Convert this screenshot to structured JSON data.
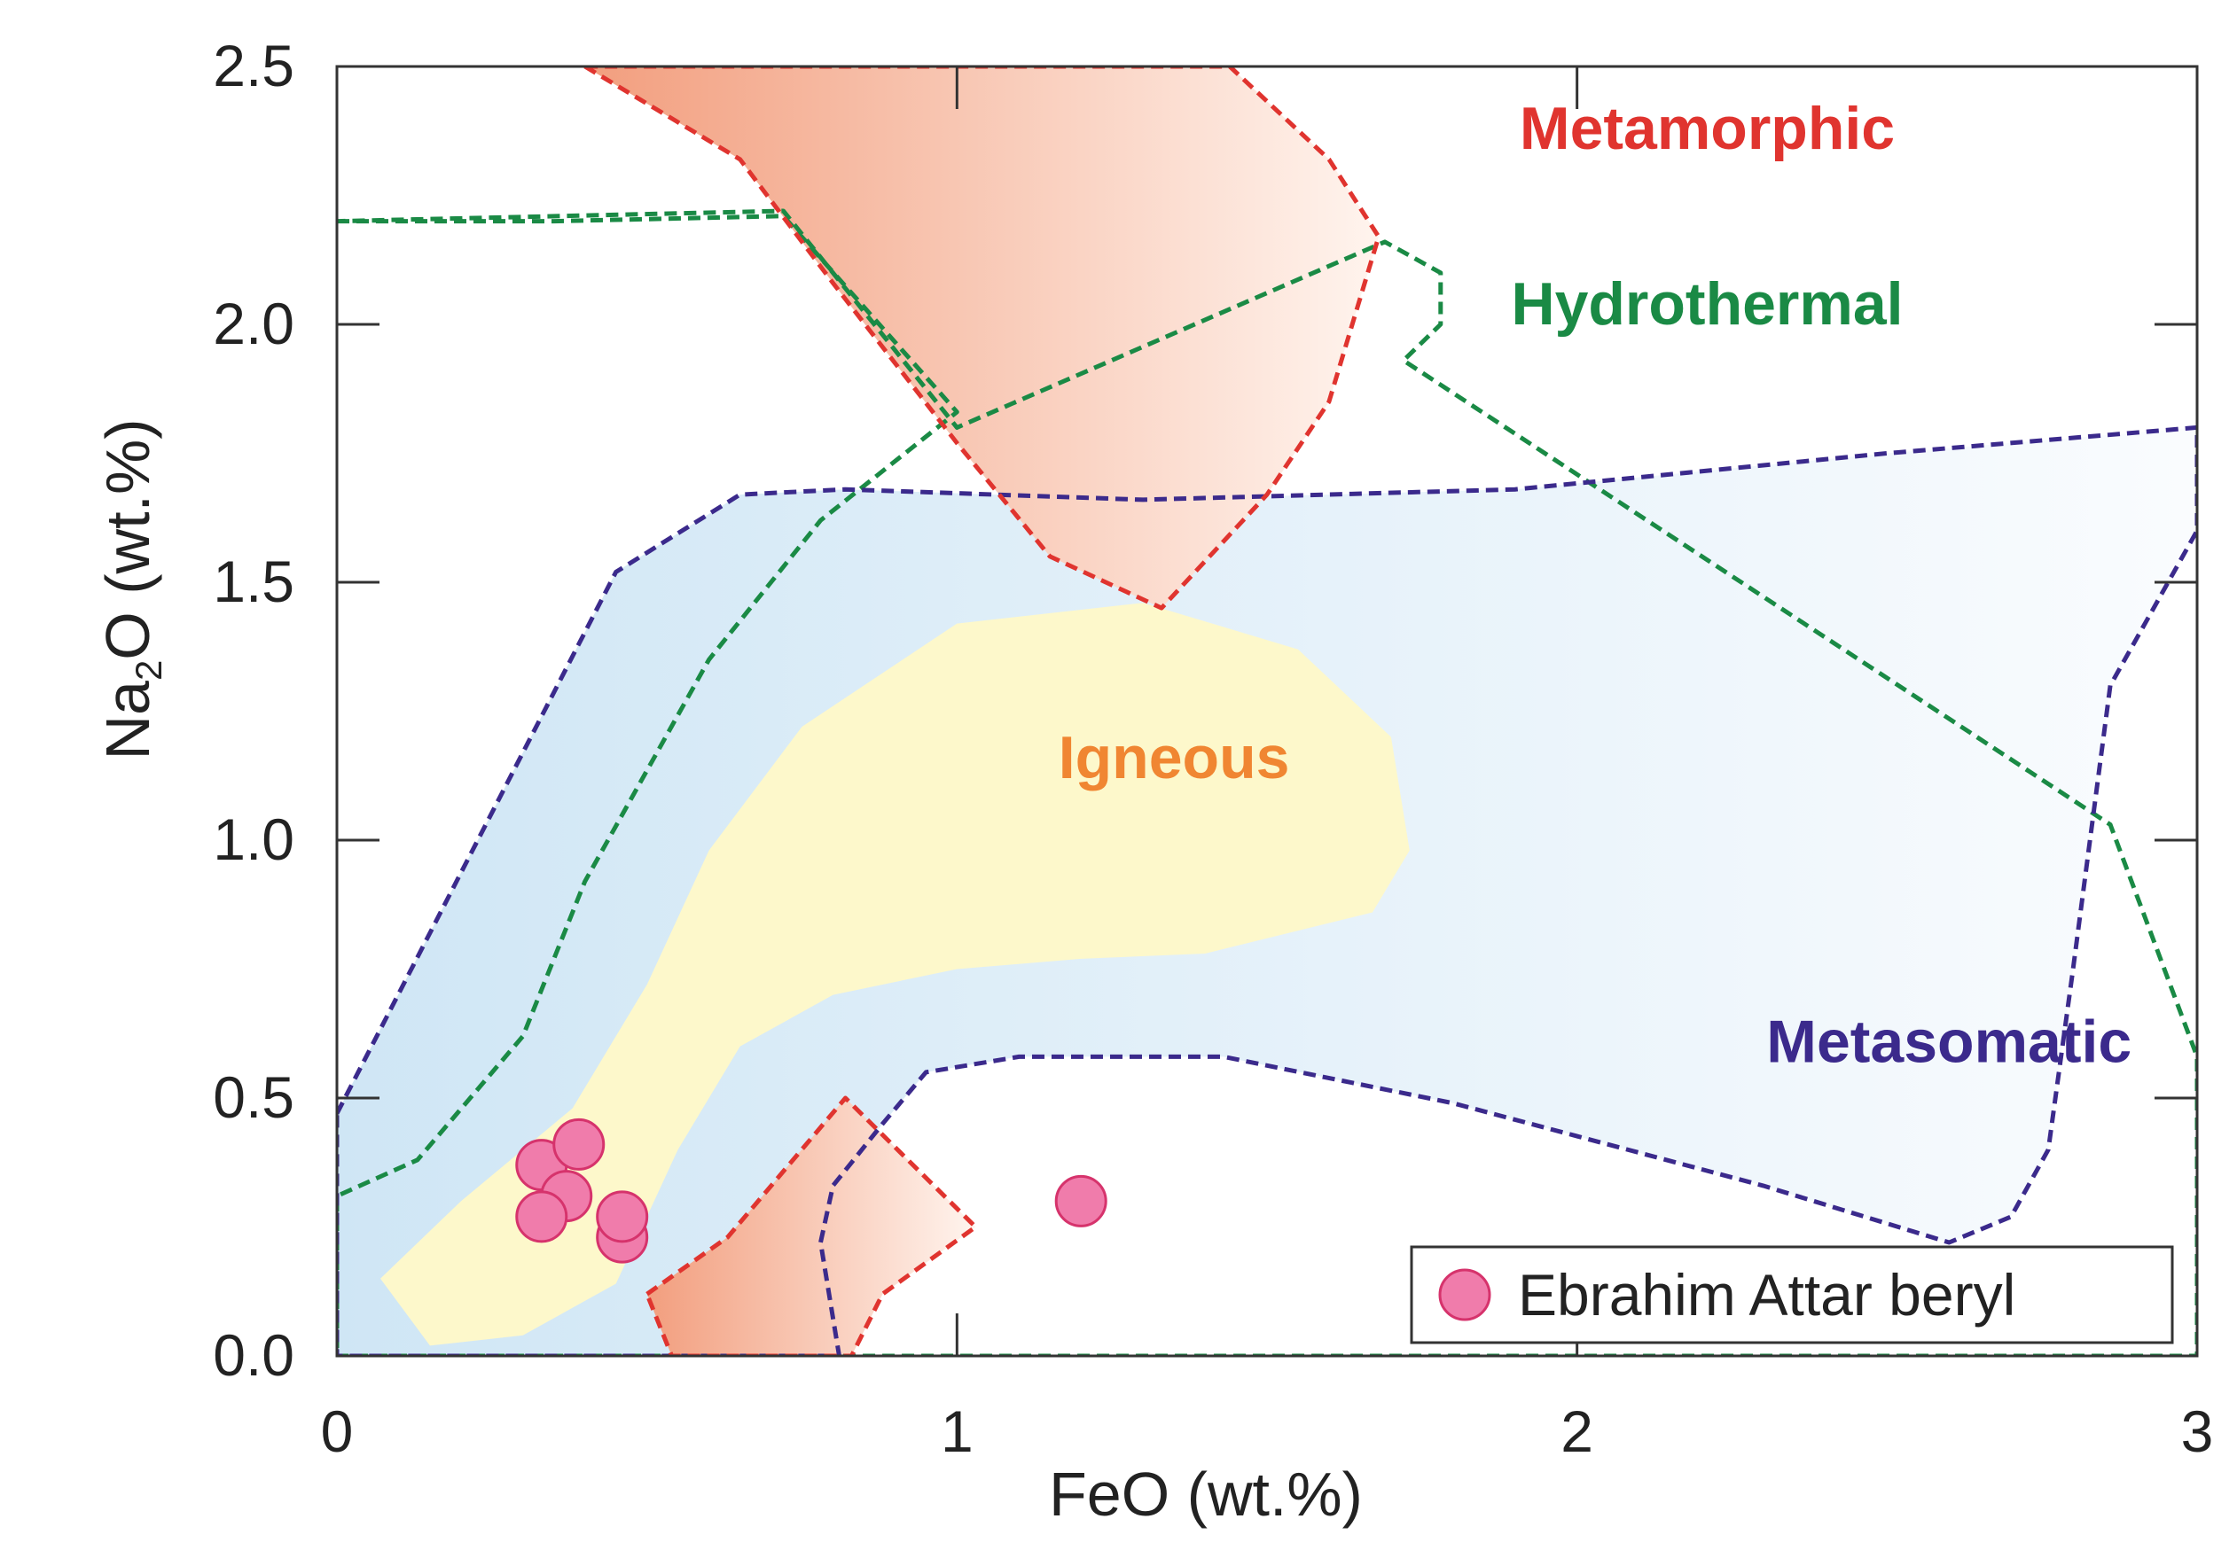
{
  "chart_data": {
    "type": "scatter",
    "title": "",
    "xlabel": "FeO (wt.%)",
    "ylabel": "Na₂O (wt.%)",
    "ylabel_parts": {
      "pre": "Na",
      "sub": "2",
      "post": "O (wt.%)"
    },
    "xlim": [
      0,
      3
    ],
    "ylim": [
      0,
      2.5
    ],
    "x_ticks": [
      0,
      1,
      2,
      3
    ],
    "x_tick_labels": [
      "0",
      "1",
      "2",
      "3"
    ],
    "y_ticks": [
      0,
      0.5,
      1.0,
      1.5,
      2.0,
      2.5
    ],
    "y_tick_labels": [
      "0.0",
      "0.5",
      "1.0",
      "1.5",
      "2.0",
      "2.5"
    ],
    "grid": false,
    "legend_position": "bottom-right",
    "colors": {
      "metamorphic": "#e0342f",
      "hydrothermal": "#1a8a45",
      "igneous": "#f08632",
      "metasomatic": "#3b2a8c",
      "points": "#f07cab",
      "point_edge": "#d6336c",
      "igneous_fill": "#fdf8cb",
      "metasomatic_fill": "#d8ebf7",
      "metamorphic_fill": "#f29e7e"
    },
    "regions": [
      {
        "name": "Metamorphic",
        "label": "Metamorphic",
        "color_key": "metamorphic",
        "label_at": [
          2.21,
          2.34
        ],
        "polygon": [
          [
            0.4,
            2.5
          ],
          [
            0.65,
            2.32
          ],
          [
            0.8,
            2.08
          ],
          [
            1.0,
            1.77
          ],
          [
            1.15,
            1.55
          ],
          [
            1.33,
            1.45
          ],
          [
            1.5,
            1.67
          ],
          [
            1.6,
            1.85
          ],
          [
            1.68,
            2.17
          ],
          [
            1.6,
            2.32
          ],
          [
            1.44,
            2.5
          ]
        ]
      },
      {
        "name": "Metamorphic (lower)",
        "label": "",
        "color_key": "metamorphic",
        "polygon": [
          [
            0.5,
            0.12
          ],
          [
            0.63,
            0.23
          ],
          [
            0.82,
            0.5
          ],
          [
            1.03,
            0.25
          ],
          [
            0.88,
            0.12
          ],
          [
            0.83,
            0.0
          ],
          [
            0.54,
            0.0
          ]
        ]
      },
      {
        "name": "Hydrothermal",
        "label": "Hydrothermal",
        "color_key": "hydrothermal",
        "label_at": [
          2.21,
          2.0
        ],
        "polygon": [
          [
            0,
            2.2
          ],
          [
            0.35,
            2.2
          ],
          [
            0.72,
            2.21
          ],
          [
            1.0,
            1.83
          ],
          [
            0.78,
            1.62
          ],
          [
            0.6,
            1.35
          ],
          [
            0.4,
            0.92
          ],
          [
            0.3,
            0.62
          ],
          [
            0.13,
            0.38
          ],
          [
            0,
            0.31
          ],
          [
            0,
            0
          ],
          [
            3,
            0
          ],
          [
            3,
            0.58
          ],
          [
            2.86,
            1.03
          ],
          [
            1.72,
            1.93
          ],
          [
            1.78,
            2.0
          ],
          [
            1.78,
            2.1
          ],
          [
            1.69,
            2.16
          ],
          [
            1.0,
            1.8
          ],
          [
            0.72,
            2.22
          ]
        ]
      },
      {
        "name": "Metasomatic",
        "label": "Metasomatic",
        "color_key": "metasomatic",
        "label_at": [
          2.6,
          0.57
        ],
        "polygon": [
          [
            0,
            0.47
          ],
          [
            0.45,
            1.52
          ],
          [
            0.65,
            1.67
          ],
          [
            0.82,
            1.68
          ],
          [
            1.3,
            1.66
          ],
          [
            1.9,
            1.68
          ],
          [
            2.5,
            1.75
          ],
          [
            3,
            1.8
          ],
          [
            3,
            1.6
          ],
          [
            2.86,
            1.3
          ],
          [
            2.8,
            0.75
          ],
          [
            2.76,
            0.4
          ],
          [
            2.7,
            0.27
          ],
          [
            2.6,
            0.22
          ],
          [
            2.3,
            0.33
          ],
          [
            1.8,
            0.49
          ],
          [
            1.43,
            0.58
          ],
          [
            1.1,
            0.58
          ],
          [
            0.95,
            0.55
          ],
          [
            0.88,
            0.45
          ],
          [
            0.8,
            0.33
          ],
          [
            0.78,
            0.22
          ],
          [
            0.81,
            0.0
          ],
          [
            0,
            0
          ]
        ]
      },
      {
        "name": "Igneous",
        "label": "Igneous",
        "color_key": "igneous",
        "label_at": [
          1.35,
          1.12
        ],
        "polygon": [
          [
            0.07,
            0.15
          ],
          [
            0.2,
            0.3
          ],
          [
            0.38,
            0.48
          ],
          [
            0.5,
            0.72
          ],
          [
            0.6,
            0.98
          ],
          [
            0.75,
            1.22
          ],
          [
            1.0,
            1.42
          ],
          [
            1.3,
            1.46
          ],
          [
            1.55,
            1.37
          ],
          [
            1.7,
            1.2
          ],
          [
            1.73,
            0.98
          ],
          [
            1.67,
            0.86
          ],
          [
            1.4,
            0.78
          ],
          [
            1.2,
            0.77
          ],
          [
            1.0,
            0.75
          ],
          [
            0.8,
            0.7
          ],
          [
            0.65,
            0.6
          ],
          [
            0.55,
            0.4
          ],
          [
            0.45,
            0.14
          ],
          [
            0.3,
            0.04
          ],
          [
            0.15,
            0.02
          ]
        ]
      }
    ],
    "series": [
      {
        "name": "Ebrahim Attar beryl",
        "x": [
          0.33,
          0.39,
          0.37,
          0.33,
          0.46,
          0.46,
          1.2
        ],
        "y": [
          0.37,
          0.41,
          0.31,
          0.27,
          0.23,
          0.27,
          0.3
        ]
      }
    ],
    "legend": [
      "Ebrahim Attar beryl"
    ]
  }
}
